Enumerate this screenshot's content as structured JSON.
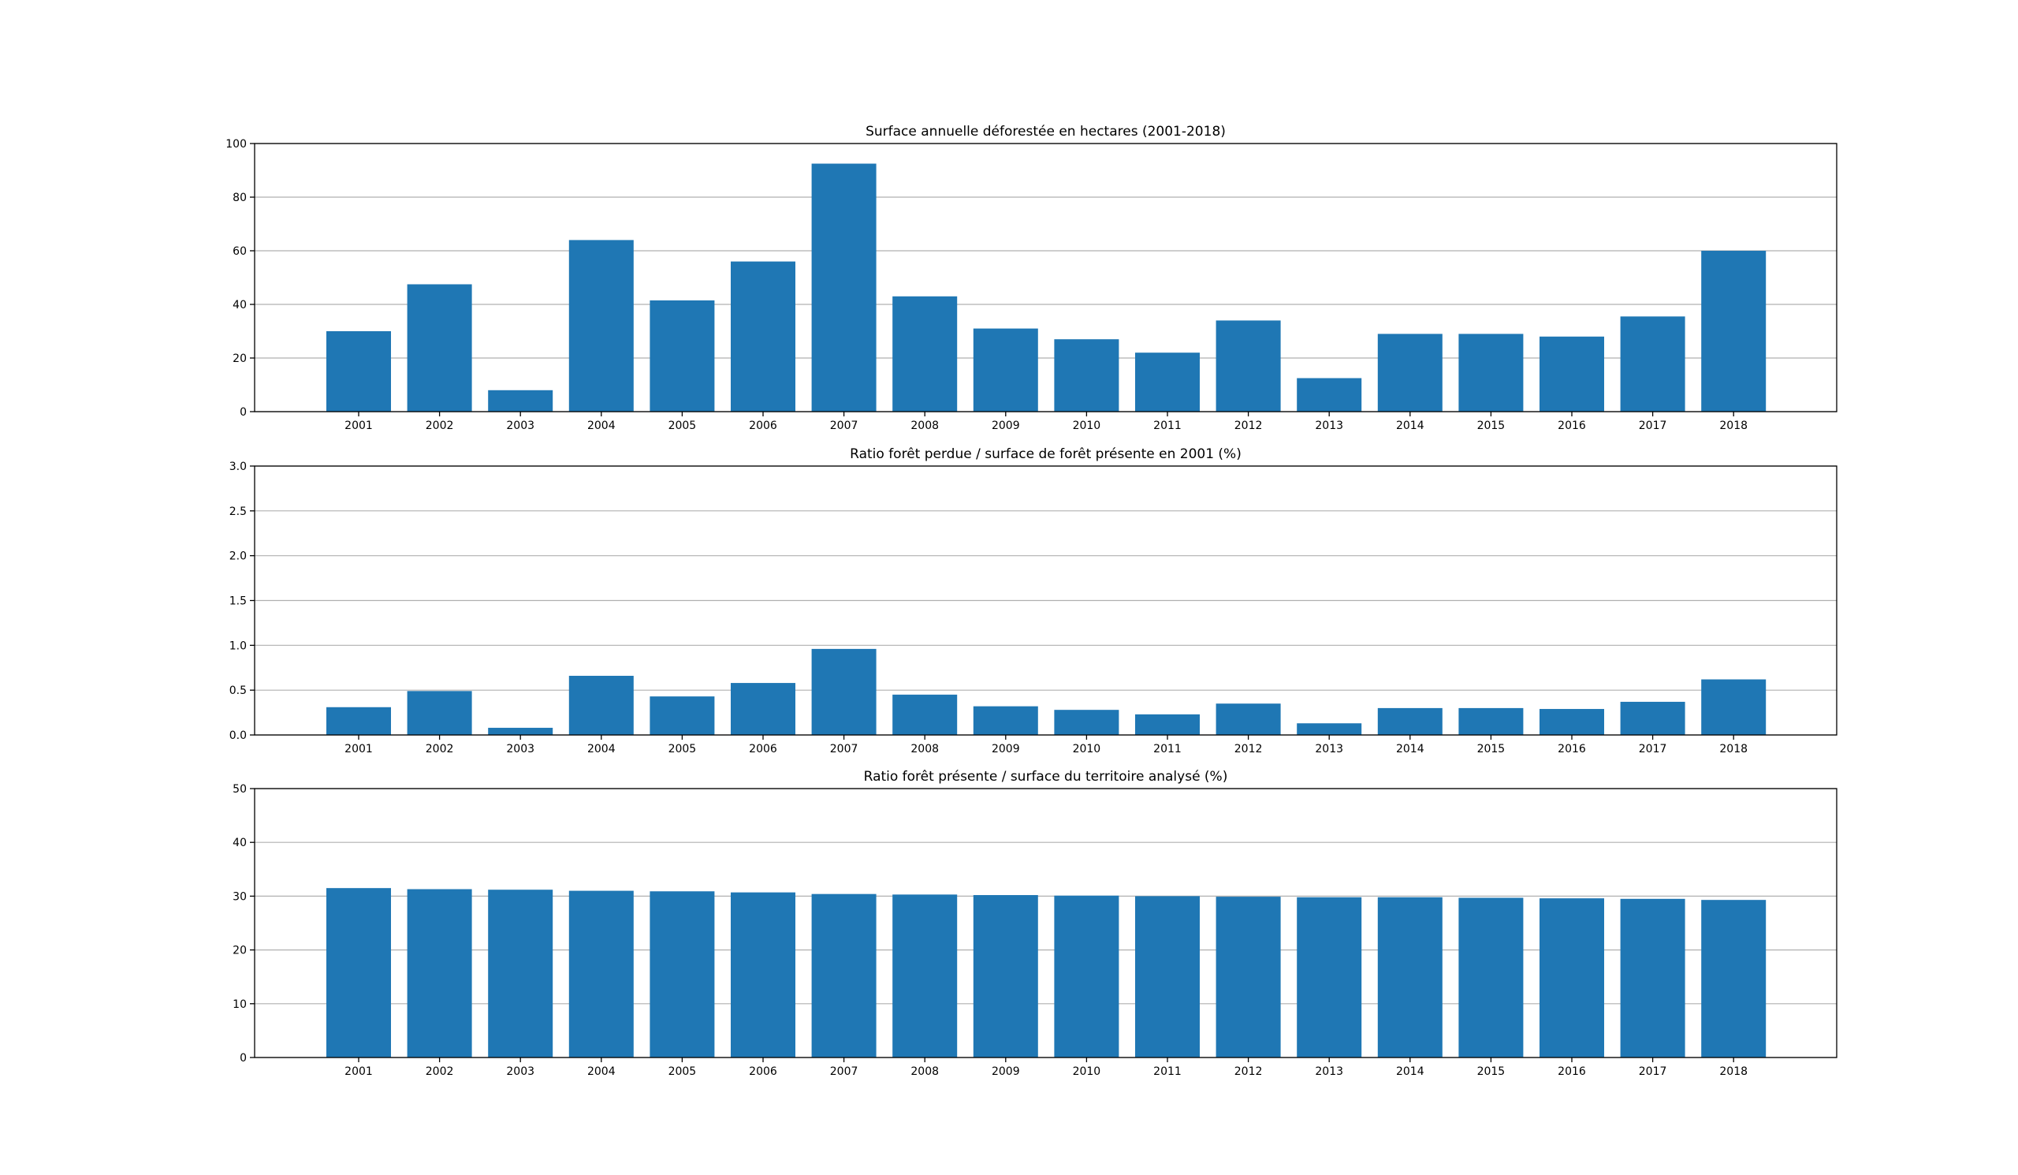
{
  "chart_data": [
    {
      "type": "bar",
      "title": "Surface annuelle déforestée en hectares (2001-2018)",
      "xlabel": "",
      "ylabel": "",
      "categories": [
        "2001",
        "2002",
        "2003",
        "2004",
        "2005",
        "2006",
        "2007",
        "2008",
        "2009",
        "2010",
        "2011",
        "2012",
        "2013",
        "2014",
        "2015",
        "2016",
        "2017",
        "2018"
      ],
      "values": [
        30,
        47.5,
        8,
        64,
        41.5,
        56,
        92.5,
        43,
        31,
        27,
        22,
        34,
        12.5,
        29,
        29,
        28,
        35.5,
        60
      ],
      "ylim": [
        0,
        100
      ],
      "yticks": [
        "0",
        "20",
        "40",
        "60",
        "80",
        "100"
      ],
      "ytick_values": [
        0,
        20,
        40,
        60,
        80,
        100
      ],
      "grid": "y",
      "color": "#1f77b4"
    },
    {
      "type": "bar",
      "title": "Ratio forêt perdue / surface de forêt présente en 2001 (%)",
      "xlabel": "",
      "ylabel": "",
      "categories": [
        "2001",
        "2002",
        "2003",
        "2004",
        "2005",
        "2006",
        "2007",
        "2008",
        "2009",
        "2010",
        "2011",
        "2012",
        "2013",
        "2014",
        "2015",
        "2016",
        "2017",
        "2018"
      ],
      "values": [
        0.31,
        0.49,
        0.08,
        0.66,
        0.43,
        0.58,
        0.96,
        0.45,
        0.32,
        0.28,
        0.23,
        0.35,
        0.13,
        0.3,
        0.3,
        0.29,
        0.37,
        0.62
      ],
      "ylim": [
        0,
        3
      ],
      "yticks": [
        "0.0",
        "0.5",
        "1.0",
        "1.5",
        "2.0",
        "2.5",
        "3.0"
      ],
      "ytick_values": [
        0,
        0.5,
        1,
        1.5,
        2,
        2.5,
        3
      ],
      "grid": "y",
      "color": "#1f77b4"
    },
    {
      "type": "bar",
      "title": "Ratio forêt présente / surface du territoire analysé (%)",
      "xlabel": "",
      "ylabel": "",
      "categories": [
        "2001",
        "2002",
        "2003",
        "2004",
        "2005",
        "2006",
        "2007",
        "2008",
        "2009",
        "2010",
        "2011",
        "2012",
        "2013",
        "2014",
        "2015",
        "2016",
        "2017",
        "2018"
      ],
      "values": [
        31.5,
        31.3,
        31.2,
        31.0,
        30.9,
        30.7,
        30.4,
        30.3,
        30.2,
        30.1,
        30.0,
        29.9,
        29.8,
        29.8,
        29.7,
        29.6,
        29.5,
        29.3
      ],
      "ylim": [
        0,
        50
      ],
      "yticks": [
        "0",
        "10",
        "20",
        "30",
        "40",
        "50"
      ],
      "ytick_values": [
        0,
        10,
        20,
        30,
        40,
        50
      ],
      "grid": "y",
      "color": "#1f77b4"
    }
  ]
}
